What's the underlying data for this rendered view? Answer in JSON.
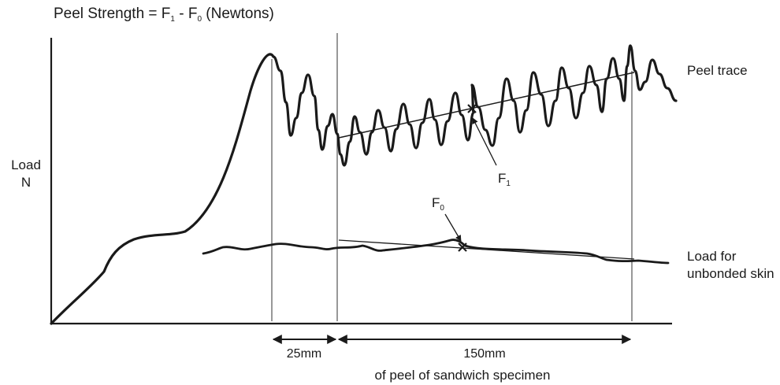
{
  "chart_data": {
    "type": "line",
    "title": {
      "prefix": "Peel Strength = F",
      "sub1": "1",
      "mid": " - F",
      "sub2": "0",
      "suffix": " (Newtons)"
    },
    "ylabel": [
      "Load",
      "N"
    ],
    "xlabel": "of peel of sandwich specimen",
    "series": [
      {
        "name": "Peel trace"
      },
      {
        "name": "Load for unbonded skin"
      }
    ],
    "series_labels": {
      "peel": "Peel trace",
      "unbonded": [
        "Load for",
        "unbonded skin"
      ]
    },
    "markers": {
      "f1": {
        "base": "F",
        "sub": "1"
      },
      "f0": {
        "base": "F",
        "sub": "0"
      }
    },
    "dimensions": [
      {
        "label": "25mm",
        "length_mm": 25
      },
      {
        "label": "150mm",
        "length_mm": 150
      }
    ],
    "grid": false,
    "colors": {
      "line": "#1a1a1a",
      "background": "#ffffff"
    }
  }
}
